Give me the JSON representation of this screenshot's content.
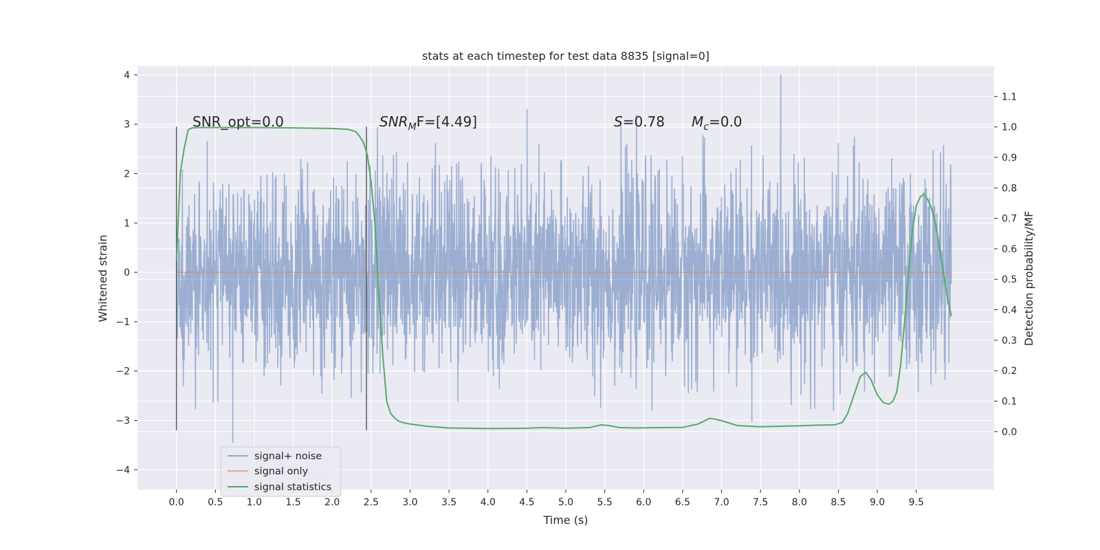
{
  "chart_data": {
    "type": "line",
    "title": "stats at each timestep for test data 8835 [signal=0]",
    "xlabel": "Time (s)",
    "ylabel": "Whitened strain",
    "y2label": "Detection probability/MF",
    "xlim": [
      -0.5,
      10.5
    ],
    "ylim": [
      -4.4,
      4.18
    ],
    "y2lim": [
      -0.19,
      1.2
    ],
    "xticks": [
      0.0,
      0.5,
      1.0,
      1.5,
      2.0,
      2.5,
      3.0,
      3.5,
      4.0,
      4.5,
      5.0,
      5.5,
      6.0,
      6.5,
      7.0,
      7.5,
      8.0,
      8.5,
      9.0,
      9.5
    ],
    "xtick_labels": [
      "0.0",
      "0.5",
      "1.0",
      "1.5",
      "2.0",
      "2.5",
      "3.0",
      "3.5",
      "4.0",
      "4.5",
      "5.0",
      "5.5",
      "6.0",
      "6.5",
      "7.0",
      "7.5",
      "8.0",
      "8.5",
      "9.0",
      "9.5"
    ],
    "yticks": [
      4,
      3,
      2,
      1,
      0,
      -1,
      -2,
      -3,
      -4
    ],
    "ytick_labels": [
      "4",
      "3",
      "2",
      "1",
      "0",
      "−1",
      "−2",
      "−3",
      "−4"
    ],
    "y2ticks": [
      1.1,
      1.0,
      0.9,
      0.8,
      0.7,
      0.6,
      0.5,
      0.4,
      0.3,
      0.2,
      0.1,
      0.0
    ],
    "y2tick_labels": [
      "1.1",
      "1.0",
      "0.9",
      "0.8",
      "0.7",
      "0.6",
      "0.5",
      "0.4",
      "0.3",
      "0.2",
      "0.1",
      "0.0"
    ],
    "grid": true,
    "legend_position": "lower-left",
    "colors": {
      "background": "#eaeaf2",
      "grid": "#ffffff",
      "noise": "#4c72b0",
      "signal_only": "#dd8452",
      "statistics": "#55a868",
      "marker_lines": "#555555"
    },
    "series": [
      {
        "name": "signal+ noise",
        "kind": "noise-trace",
        "x_range": [
          0.0,
          9.95
        ],
        "y_range": [
          -4.3,
          4.0
        ]
      },
      {
        "name": "signal only",
        "kind": "line",
        "x": [
          0.0,
          9.95
        ],
        "y": [
          0.0,
          0.0
        ]
      },
      {
        "name": "signal statistics",
        "kind": "line",
        "axis": "right",
        "x": [
          0.0,
          0.05,
          0.1,
          0.15,
          0.2,
          0.3,
          0.5,
          1.0,
          1.5,
          2.0,
          2.2,
          2.3,
          2.35,
          2.4,
          2.45,
          2.5,
          2.55,
          2.6,
          2.65,
          2.7,
          2.75,
          2.8,
          2.85,
          2.9,
          3.0,
          3.2,
          3.5,
          4.0,
          4.5,
          4.7,
          5.0,
          5.3,
          5.45,
          5.55,
          5.7,
          5.9,
          6.2,
          6.5,
          6.7,
          6.85,
          7.0,
          7.2,
          7.5,
          7.8,
          8.0,
          8.2,
          8.45,
          8.55,
          8.62,
          8.7,
          8.78,
          8.85,
          8.92,
          9.0,
          9.08,
          9.15,
          9.2,
          9.25,
          9.3,
          9.35,
          9.4,
          9.45,
          9.5,
          9.55,
          9.6,
          9.65,
          9.7,
          9.75,
          9.8,
          9.85,
          9.9,
          9.95
        ],
        "y": [
          0.56,
          0.85,
          0.93,
          0.99,
          0.997,
          0.998,
          0.998,
          0.998,
          0.997,
          0.995,
          0.992,
          0.985,
          0.97,
          0.95,
          0.91,
          0.82,
          0.68,
          0.45,
          0.25,
          0.1,
          0.06,
          0.045,
          0.035,
          0.03,
          0.025,
          0.018,
          0.012,
          0.01,
          0.011,
          0.013,
          0.011,
          0.013,
          0.022,
          0.02,
          0.013,
          0.012,
          0.013,
          0.014,
          0.025,
          0.044,
          0.036,
          0.02,
          0.016,
          0.018,
          0.019,
          0.021,
          0.022,
          0.03,
          0.06,
          0.12,
          0.18,
          0.195,
          0.17,
          0.12,
          0.095,
          0.09,
          0.1,
          0.13,
          0.22,
          0.36,
          0.52,
          0.66,
          0.74,
          0.77,
          0.78,
          0.76,
          0.73,
          0.68,
          0.6,
          0.52,
          0.44,
          0.38
        ]
      }
    ],
    "markers": [
      {
        "x": 0.0,
        "y_range": [
          -3.2,
          2.95
        ]
      },
      {
        "x": 2.44,
        "y_range": [
          -3.2,
          2.95
        ]
      }
    ],
    "annotations": [
      {
        "id": "snr-opt",
        "text": "SNR_opt=0.0",
        "x": 0.2,
        "y": 3.0
      },
      {
        "id": "snr-mf",
        "sym": "SNR",
        "sub": "M",
        "rest": "F=[4.49]",
        "x": 2.6,
        "y": 3.0
      },
      {
        "id": "s-stat",
        "sym": "S",
        "rest": "=0.78",
        "x": 5.6,
        "y": 3.0
      },
      {
        "id": "mc",
        "sym": "M",
        "sub": "c",
        "rest": "=0.0",
        "x": 6.6,
        "y": 3.0
      }
    ]
  }
}
